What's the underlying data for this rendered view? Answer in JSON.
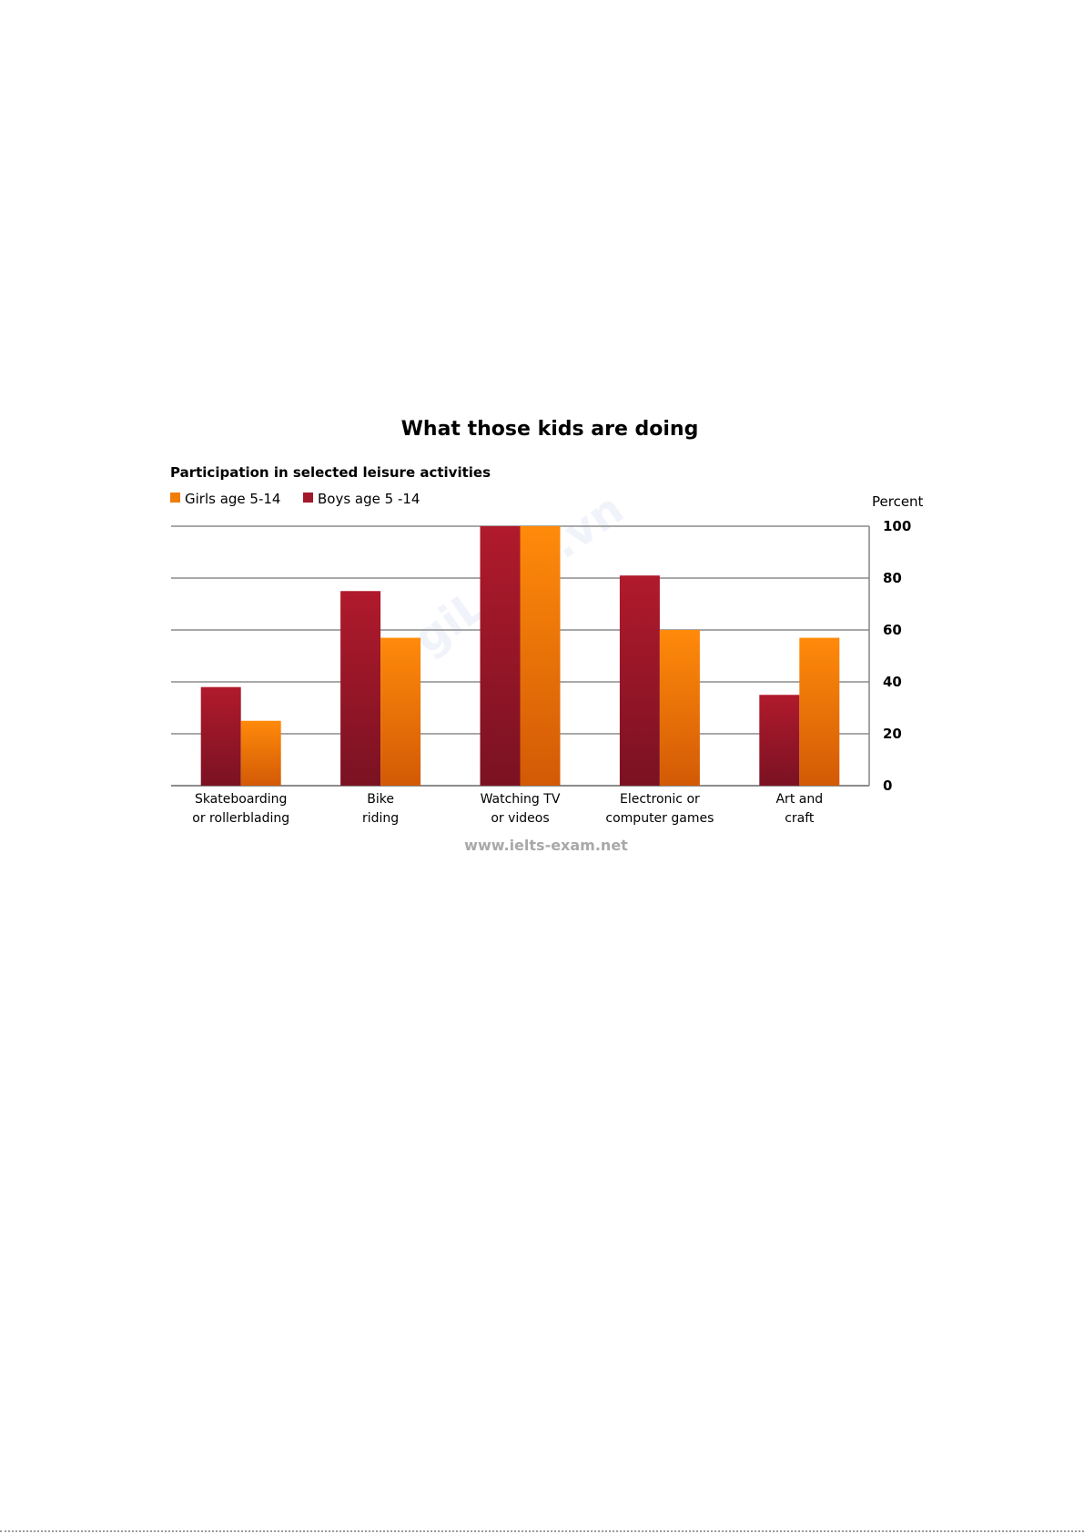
{
  "chart_data": {
    "type": "bar",
    "title": "What those kids are doing",
    "subtitle": "Participation in selected leisure activities",
    "ylabel": "Percent",
    "ylim": [
      0,
      100
    ],
    "yticks": [
      0,
      20,
      40,
      60,
      80,
      100
    ],
    "grid": true,
    "legend_position": "top-left",
    "categories": [
      [
        "Skateboarding",
        "or rollerblading"
      ],
      [
        "Bike",
        "riding"
      ],
      [
        "Watching TV",
        "or videos"
      ],
      [
        "Electronic or",
        "computer games"
      ],
      [
        "Art and",
        "craft"
      ]
    ],
    "series": [
      {
        "name": "Boys age 5 -14",
        "color": "#a3182a",
        "values": [
          38,
          75,
          100,
          81,
          35
        ]
      },
      {
        "name": "Girls age 5-14",
        "color": "#f07d0a",
        "values": [
          25,
          57,
          100,
          60,
          57
        ]
      }
    ],
    "legend_order": [
      1,
      0
    ],
    "source": "www.ielts-exam.net",
    "watermark": "giLobu.vn"
  }
}
